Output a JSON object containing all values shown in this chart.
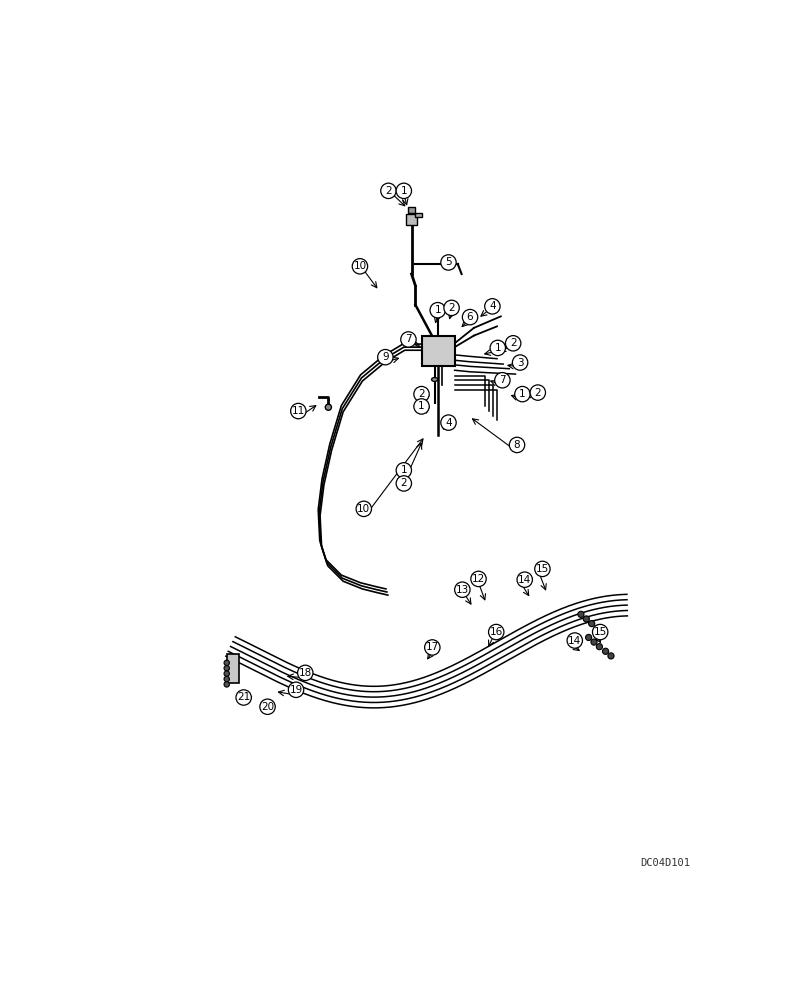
{
  "bg_color": "#ffffff",
  "line_color": "#000000",
  "circle_color": "#ffffff",
  "circle_edge": "#000000",
  "watermark": "DC04D101"
}
